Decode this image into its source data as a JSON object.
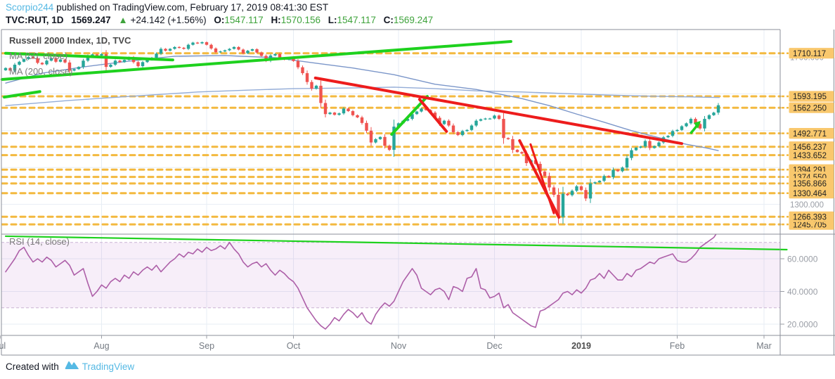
{
  "header": {
    "username": "Scorpio244",
    "published": " published on TradingView.com, February 17, 2019 08:41:30 EST",
    "symbol": "TVC:RUT, 1D",
    "last": "1569.247",
    "arrow": "▲",
    "change": "+24.142 (+1.56%)",
    "o_label": "O:",
    "o": "1547.117",
    "h_label": "H:",
    "h": "1570.156",
    "l_label": "L:",
    "l": "1547.117",
    "c_label": "C:",
    "c": "1569.247"
  },
  "legend": {
    "title": "Russell 2000 Index, 1D, TVC",
    "ma50": "MA (50, close)",
    "ma200": "MA (200, close)",
    "rsi": "RSI (14, close)"
  },
  "footer": {
    "created": "Created with",
    "brand": "TradingView"
  },
  "colors": {
    "link_blue": "#55b9e4",
    "value_green": "#3fa33c",
    "candle_up": "#26a69a",
    "candle_down": "#ef5350",
    "trend_green": "#1ed11e",
    "trend_red": "#ed1c1c",
    "level_line": "#f3b93f",
    "level_badge": "#f9c86d",
    "badge_text": "#222222",
    "ma50": "#7b96c9",
    "ma200": "#93acd7",
    "rsi_line": "#ad5fa8",
    "rsi_band_fill": "rgba(171,71,188,0.09)",
    "rsi_band_border": "#c9b2d4",
    "grid": "#e7edf4",
    "frame": "#8b8f99",
    "axis_text": "#797d85"
  },
  "chart_data": {
    "type": "candlestick",
    "title": "Russell 2000 Index, 1D, TVC",
    "interval": "1D",
    "start_date": "2018-07-02",
    "price_axis_range": [
      1223,
      1774
    ],
    "levels": [
      1710.117,
      1593.195,
      1562.25,
      1492.771,
      1456.237,
      1433.652,
      1394.291,
      1374.55,
      1356.866,
      1330.464,
      1245.705,
      1266.393
    ],
    "grey_axis_labels": [
      {
        "text": "1700.000",
        "price": 1700
      },
      {
        "text": "1300.000",
        "price": 1300
      }
    ],
    "months": [
      {
        "label": "Jul",
        "day": -1.2,
        "bold": false
      },
      {
        "label": "Aug",
        "day": 21,
        "bold": false
      },
      {
        "label": "Sep",
        "day": 44,
        "bold": false
      },
      {
        "label": "Oct",
        "day": 63,
        "bold": false
      },
      {
        "label": "Nov",
        "day": 86,
        "bold": false
      },
      {
        "label": "Dec",
        "day": 107,
        "bold": false
      },
      {
        "label": "2019",
        "day": 126,
        "bold": true
      },
      {
        "label": "Feb",
        "day": 147,
        "bold": false
      },
      {
        "label": "Mar",
        "day": 166,
        "bold": false
      }
    ],
    "closes": [
      1670,
      1663,
      1679,
      1687,
      1694,
      1700,
      1696,
      1684,
      1680,
      1690,
      1697,
      1687,
      1693,
      1685,
      1663,
      1667,
      1673,
      1690,
      1703,
      1707,
      1704,
      1708,
      1673,
      1679,
      1690,
      1686,
      1692,
      1699,
      1686,
      1675,
      1686,
      1692,
      1698,
      1709,
      1722,
      1717,
      1722,
      1727,
      1725,
      1722,
      1733,
      1739,
      1737,
      1740,
      1733,
      1723,
      1713,
      1715,
      1718,
      1722,
      1727,
      1720,
      1710,
      1717,
      1721,
      1712,
      1703,
      1690,
      1704,
      1708,
      1697,
      1693,
      1696,
      1689,
      1672,
      1656,
      1632,
      1614,
      1622,
      1575,
      1545,
      1549,
      1543,
      1547,
      1560,
      1553,
      1542,
      1536,
      1521,
      1500,
      1468,
      1477,
      1483,
      1459,
      1448,
      1511,
      1520,
      1527,
      1532,
      1545,
      1552,
      1560,
      1556,
      1549,
      1535,
      1518,
      1527,
      1514,
      1496,
      1488,
      1499,
      1502,
      1514,
      1527,
      1531,
      1533,
      1533,
      1541,
      1532,
      1480,
      1477,
      1448,
      1442,
      1438,
      1412,
      1420,
      1410,
      1389,
      1377,
      1346,
      1326,
      1266,
      1329,
      1325,
      1337,
      1349,
      1339,
      1316,
      1357,
      1360,
      1364,
      1377,
      1374,
      1394,
      1390,
      1400,
      1426,
      1447,
      1454,
      1457,
      1472,
      1453,
      1458,
      1468,
      1482,
      1486,
      1499,
      1502,
      1512,
      1520,
      1532,
      1518,
      1506,
      1532,
      1542,
      1549,
      1569
    ],
    "ma50": [
      [
        0,
        1629
      ],
      [
        8,
        1656
      ],
      [
        17,
        1673
      ],
      [
        26.5,
        1688
      ],
      [
        37,
        1702
      ],
      [
        48,
        1704
      ],
      [
        59,
        1698
      ],
      [
        68,
        1683
      ],
      [
        76,
        1670
      ],
      [
        85,
        1652
      ],
      [
        94,
        1626
      ],
      [
        103,
        1612
      ],
      [
        113,
        1587
      ],
      [
        119,
        1568
      ],
      [
        125,
        1545
      ],
      [
        131,
        1523
      ],
      [
        137,
        1500
      ],
      [
        143,
        1481
      ],
      [
        149,
        1463
      ],
      [
        153,
        1454
      ],
      [
        156,
        1446
      ]
    ],
    "ma200": [
      [
        0,
        1568
      ],
      [
        14,
        1582
      ],
      [
        29.5,
        1595
      ],
      [
        42,
        1605
      ],
      [
        53,
        1610
      ],
      [
        63,
        1614
      ],
      [
        76,
        1616
      ],
      [
        85,
        1618
      ],
      [
        94,
        1614
      ],
      [
        103,
        1608
      ],
      [
        113,
        1605
      ],
      [
        122,
        1601
      ],
      [
        131,
        1597
      ],
      [
        140,
        1594
      ],
      [
        156.2,
        1590
      ]
    ],
    "trendlines": [
      {
        "color": "green",
        "w": 4,
        "pts": [
          [
            -0.8,
            1639
          ],
          [
            110.6,
            1742
          ]
        ]
      },
      {
        "color": "green",
        "w": 4,
        "pts": [
          [
            0,
            1710
          ],
          [
            36.6,
            1692
          ]
        ]
      },
      {
        "color": "green",
        "w": 4,
        "pts": [
          [
            -0.3,
            1591
          ],
          [
            7.5,
            1606
          ]
        ]
      },
      {
        "color": "green",
        "w": 4,
        "pts": [
          [
            84.5,
            1490
          ],
          [
            92.3,
            1593
          ]
        ]
      },
      {
        "color": "red",
        "w": 4,
        "pts": [
          [
            67.8,
            1643
          ],
          [
            148,
            1465
          ]
        ]
      },
      {
        "color": "red",
        "w": 4,
        "pts": [
          [
            90.6,
            1585
          ],
          [
            96.5,
            1498
          ]
        ]
      },
      {
        "color": "red",
        "w": 4,
        "pts": [
          [
            112.5,
            1473
          ],
          [
            121.1,
            1265
          ]
        ]
      },
      {
        "color": "red",
        "w": 3,
        "pts": [
          [
            114.9,
            1463
          ],
          [
            120,
            1276
          ]
        ]
      }
    ],
    "marker_arrow": {
      "from": [
        149.9,
        1492
      ],
      "to": [
        151.7,
        1519
      ]
    },
    "rsi": {
      "band": [
        30,
        70
      ],
      "ticks": [
        {
          "value": 60,
          "label": "60.0000"
        },
        {
          "value": 40,
          "label": "40.0000"
        },
        {
          "value": 20,
          "label": "20.0000"
        }
      ],
      "trendline": [
        [
          0,
          73.8
        ],
        [
          171,
          65.6
        ]
      ],
      "values": [
        52,
        56,
        60,
        65,
        67,
        62,
        58,
        60,
        58,
        61,
        59,
        55,
        57,
        59,
        56,
        50,
        52,
        54,
        45,
        37,
        40,
        44,
        42,
        46,
        48,
        46,
        50,
        48,
        52,
        50,
        53,
        55,
        53,
        56,
        52,
        55,
        58,
        60,
        63,
        61,
        64,
        63,
        66,
        64,
        67,
        65,
        66,
        68,
        66,
        70,
        66,
        63,
        58,
        55,
        57,
        58,
        55,
        57,
        53,
        50,
        53,
        51,
        48,
        46,
        42,
        36,
        30,
        26,
        22,
        19,
        17,
        20,
        24,
        22,
        26,
        29,
        27,
        24,
        27,
        22,
        20,
        26,
        30,
        33,
        31,
        34,
        40,
        46,
        50,
        54,
        50,
        42,
        40,
        38,
        41,
        42,
        40,
        35,
        43,
        42,
        40,
        48,
        49,
        54,
        42,
        41,
        36,
        37,
        39,
        30,
        32,
        27,
        25,
        23,
        21,
        19,
        18,
        28,
        29,
        31,
        33,
        35,
        39,
        40,
        38,
        41,
        39,
        42,
        47,
        48,
        51,
        48,
        53,
        50,
        47,
        47,
        51,
        49,
        53,
        54,
        56,
        58,
        57,
        60,
        61,
        62,
        63,
        59,
        58,
        58,
        60,
        63,
        67,
        69,
        71,
        73,
        77
      ]
    }
  }
}
